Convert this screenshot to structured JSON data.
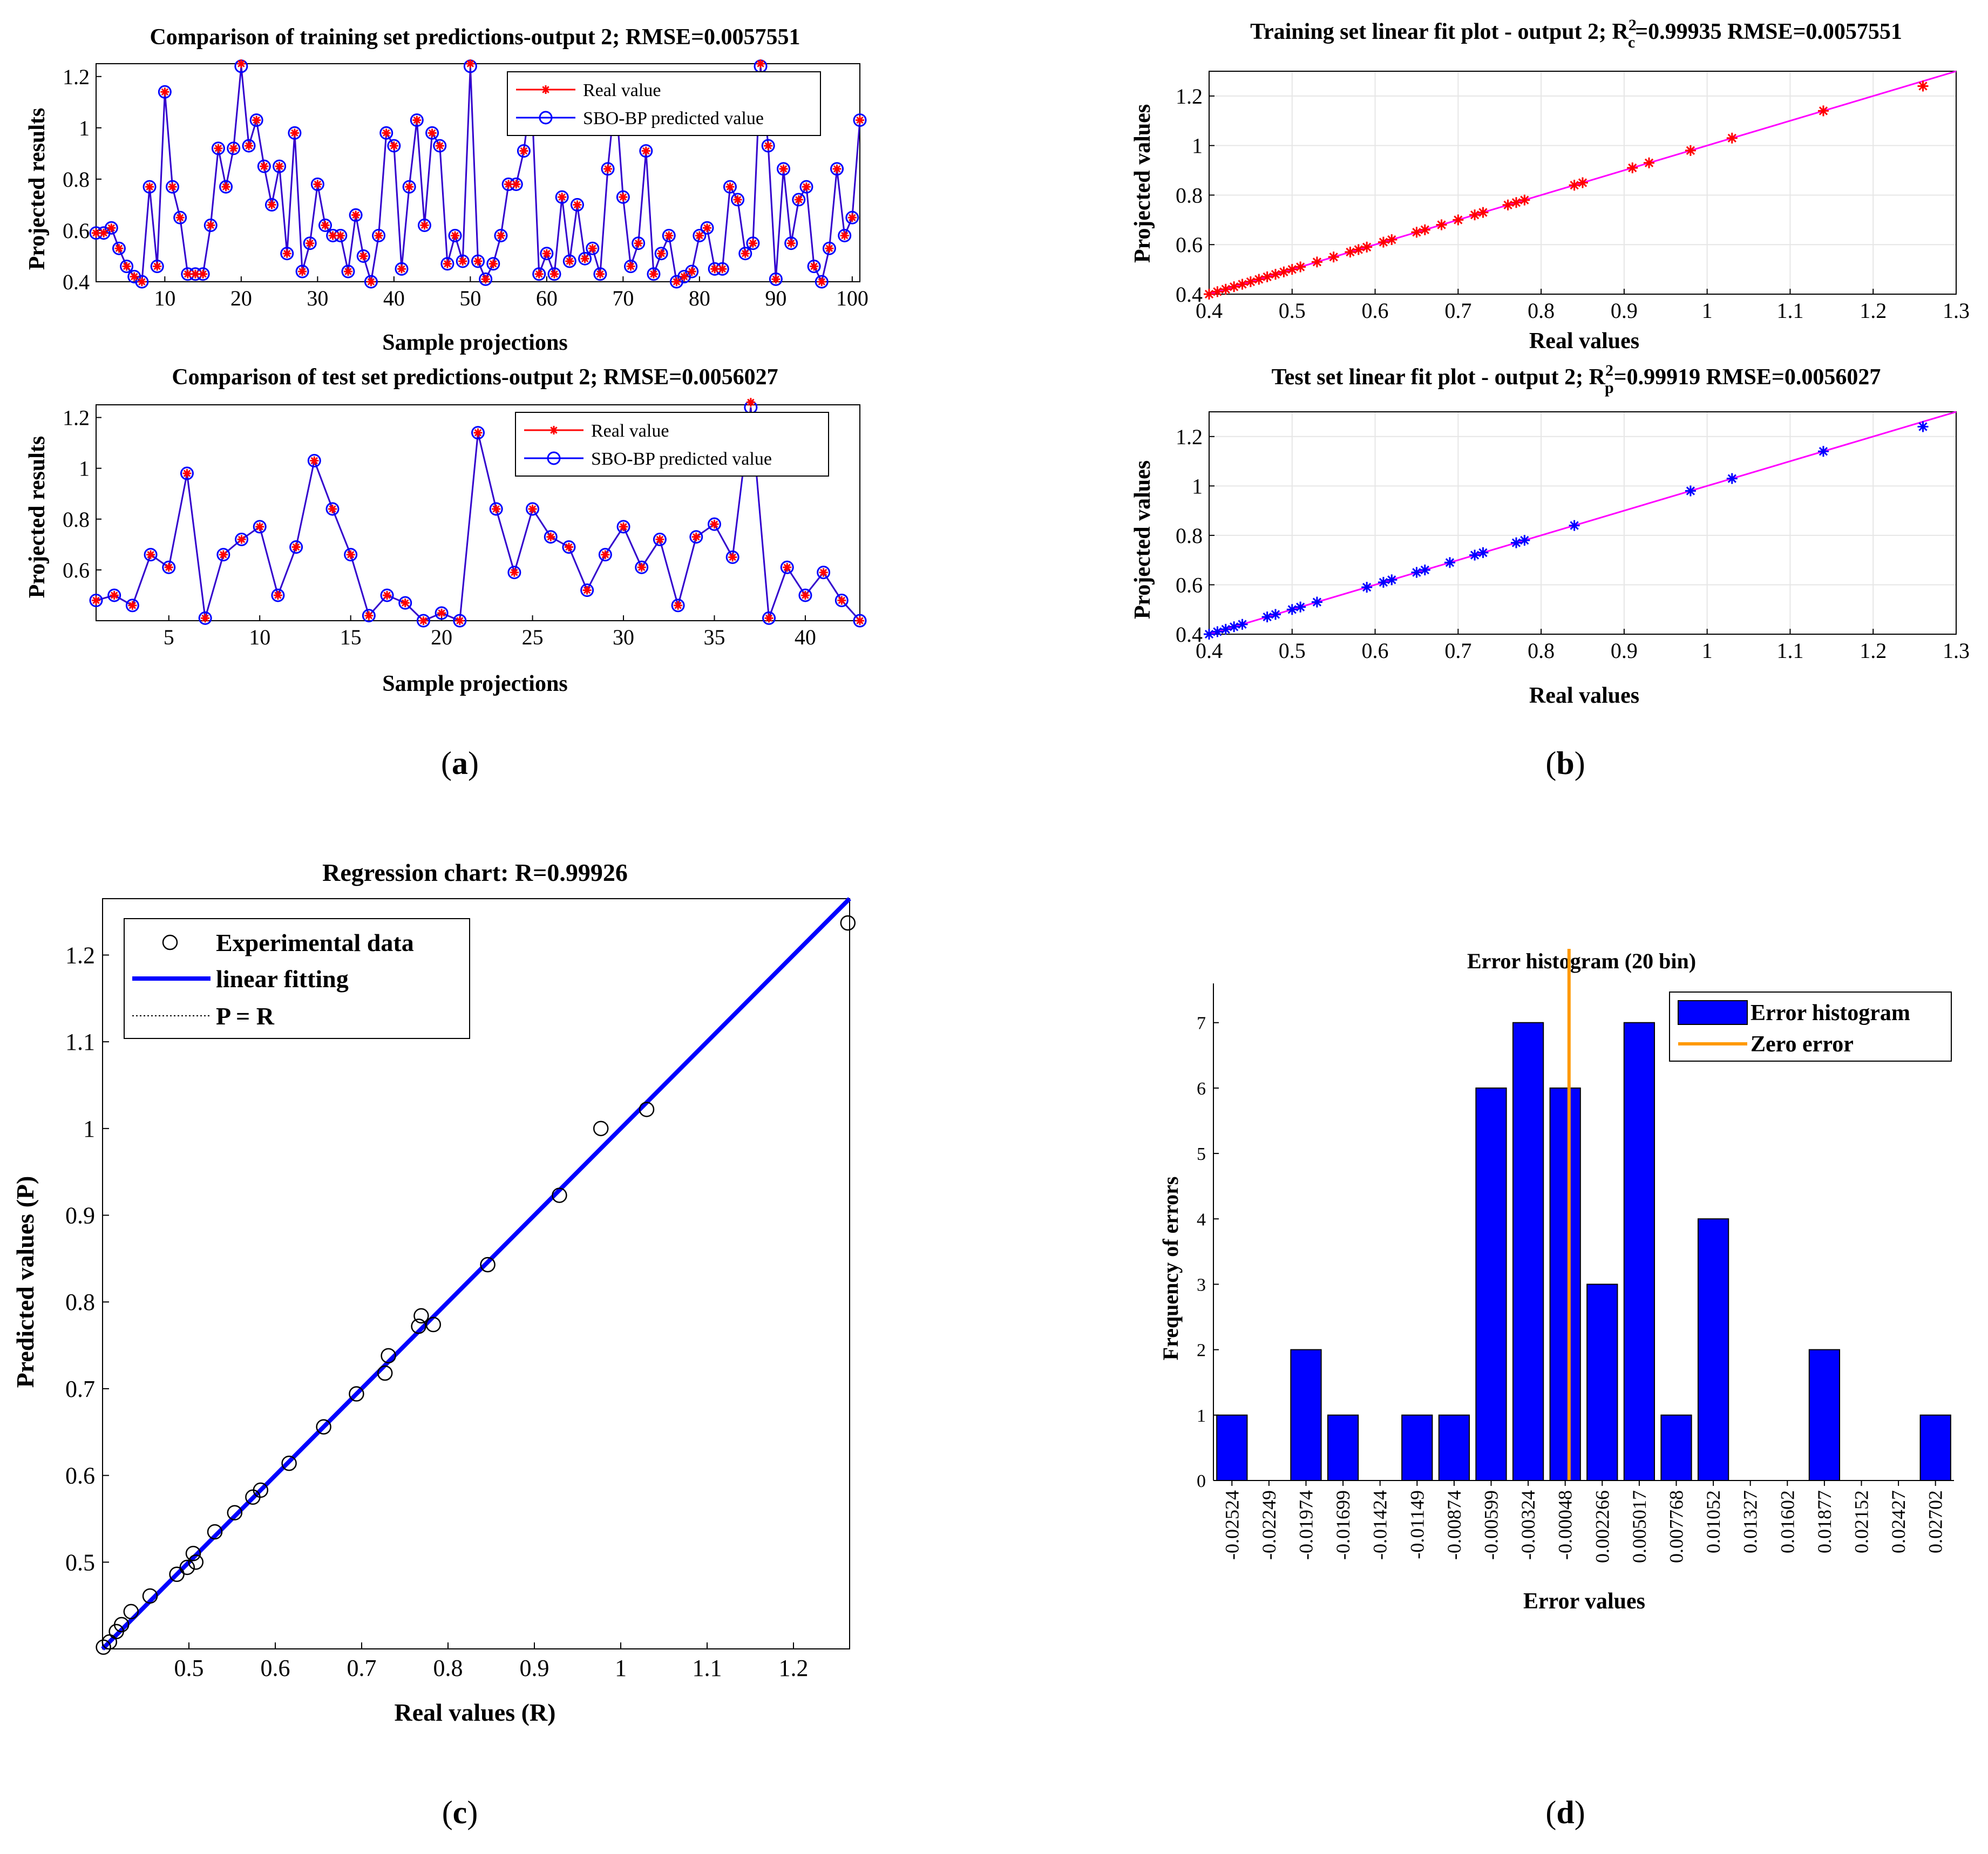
{
  "chart_data": [
    {
      "id": "a1",
      "type": "line",
      "title": "Comparison of training set predictions-output 2; RMSE=0.0057551",
      "xlabel": "Sample projections",
      "ylabel": "Projected results",
      "xlim": [
        1,
        101
      ],
      "ylim": [
        0.4,
        1.25
      ],
      "xticks": [
        10,
        20,
        30,
        40,
        50,
        60,
        70,
        80,
        90,
        100
      ],
      "yticks": [
        0.4,
        0.6,
        0.8,
        1,
        1.2
      ],
      "ytick_labels": [
        "0.4",
        "0.6",
        "0.8",
        "1",
        "1.2"
      ],
      "legend": [
        "Real value",
        "SBO-BP predicted value"
      ],
      "legend_position": "top-right",
      "series": [
        {
          "name": "Real value",
          "color": "#ff0000",
          "marker": "star",
          "values": [
            0.59,
            0.59,
            0.61,
            0.53,
            0.46,
            0.42,
            0.4,
            0.77,
            0.46,
            1.14,
            0.77,
            0.65,
            0.43,
            0.43,
            0.43,
            0.62,
            0.92,
            0.77,
            0.92,
            1.25,
            0.93,
            1.03,
            0.85,
            0.7,
            0.85,
            0.51,
            0.98,
            0.44,
            0.55,
            0.78,
            0.62,
            0.58,
            0.58,
            0.44,
            0.66,
            0.5,
            0.4,
            0.58,
            0.98,
            0.93,
            0.45,
            0.77,
            1.03,
            0.62,
            0.98,
            0.93,
            0.47,
            0.58,
            0.48,
            1.25,
            0.48,
            0.41,
            0.47,
            0.58,
            0.78,
            0.78,
            0.91,
            1.14,
            0.43,
            0.51,
            0.43,
            0.73,
            0.48,
            0.7,
            0.49,
            0.53,
            0.43,
            0.84,
            1.14,
            0.73,
            0.46,
            0.55,
            0.91,
            0.43,
            0.51,
            0.58,
            0.4,
            0.42,
            0.44,
            0.58,
            0.61,
            0.45,
            0.45,
            0.77,
            0.72,
            0.51,
            0.55,
            1.25,
            0.93,
            0.41,
            0.84,
            0.55,
            0.72,
            0.77,
            0.46,
            0.4,
            0.53,
            0.84,
            0.58,
            0.65,
            1.03
          ]
        },
        {
          "name": "SBO-BP predicted value",
          "color": "#0000ff",
          "marker": "circle",
          "values": [
            0.59,
            0.59,
            0.61,
            0.53,
            0.46,
            0.42,
            0.4,
            0.77,
            0.46,
            1.14,
            0.77,
            0.65,
            0.43,
            0.43,
            0.43,
            0.62,
            0.92,
            0.77,
            0.92,
            1.24,
            0.93,
            1.03,
            0.85,
            0.7,
            0.85,
            0.51,
            0.98,
            0.44,
            0.55,
            0.78,
            0.62,
            0.58,
            0.58,
            0.44,
            0.66,
            0.5,
            0.4,
            0.58,
            0.98,
            0.93,
            0.45,
            0.77,
            1.03,
            0.62,
            0.98,
            0.93,
            0.47,
            0.58,
            0.48,
            1.24,
            0.48,
            0.41,
            0.47,
            0.58,
            0.78,
            0.78,
            0.91,
            1.14,
            0.43,
            0.51,
            0.43,
            0.73,
            0.48,
            0.7,
            0.49,
            0.53,
            0.43,
            0.84,
            1.14,
            0.73,
            0.46,
            0.55,
            0.91,
            0.43,
            0.51,
            0.58,
            0.4,
            0.42,
            0.44,
            0.58,
            0.61,
            0.45,
            0.45,
            0.77,
            0.72,
            0.51,
            0.55,
            1.24,
            0.93,
            0.41,
            0.84,
            0.55,
            0.72,
            0.77,
            0.46,
            0.4,
            0.53,
            0.84,
            0.58,
            0.65,
            1.03
          ]
        }
      ]
    },
    {
      "id": "a2",
      "type": "line",
      "title": "Comparison of test set predictions-output 2; RMSE=0.0056027",
      "xlabel": "Sample projections",
      "ylabel": "Projected results",
      "xlim": [
        1,
        43
      ],
      "ylim": [
        0.4,
        1.25
      ],
      "xticks": [
        5,
        10,
        15,
        20,
        25,
        30,
        35,
        40
      ],
      "yticks": [
        0.6,
        0.8,
        1,
        1.2
      ],
      "ytick_labels": [
        "0.6",
        "0.8",
        "1",
        "1.2"
      ],
      "legend": [
        "Real value",
        "SBO-BP predicted value"
      ],
      "legend_position": "top-right",
      "series": [
        {
          "name": "Real value",
          "color": "#ff0000",
          "marker": "star",
          "values": [
            0.48,
            0.5,
            0.46,
            0.66,
            0.61,
            0.98,
            0.41,
            0.66,
            0.72,
            0.77,
            0.5,
            0.69,
            1.03,
            0.84,
            0.66,
            0.42,
            0.5,
            0.47,
            0.4,
            0.43,
            0.4,
            1.14,
            0.84,
            0.59,
            0.84,
            0.73,
            0.69,
            0.52,
            0.66,
            0.77,
            0.61,
            0.72,
            0.46,
            0.73,
            0.78,
            0.65,
            1.26,
            0.41,
            0.61,
            0.5,
            0.59,
            0.48,
            0.4
          ]
        },
        {
          "name": "SBO-BP predicted value",
          "color": "#0000ff",
          "marker": "circle",
          "values": [
            0.48,
            0.5,
            0.46,
            0.66,
            0.61,
            0.98,
            0.41,
            0.66,
            0.72,
            0.77,
            0.5,
            0.69,
            1.03,
            0.84,
            0.66,
            0.42,
            0.5,
            0.47,
            0.4,
            0.43,
            0.4,
            1.14,
            0.84,
            0.59,
            0.84,
            0.73,
            0.69,
            0.52,
            0.66,
            0.77,
            0.61,
            0.72,
            0.46,
            0.73,
            0.78,
            0.65,
            1.24,
            0.41,
            0.61,
            0.5,
            0.59,
            0.48,
            0.4
          ]
        }
      ]
    },
    {
      "id": "b1",
      "type": "scatter",
      "title_prefix": "Training set linear fit plot - output 2; R",
      "title_sup": "2",
      "title_sub": "c",
      "title_suffix": "=0.99935  RMSE=0.0057551",
      "xlabel": "Real values",
      "ylabel": "Projected values",
      "xlim": [
        0.4,
        1.3
      ],
      "ylim": [
        0.4,
        1.3
      ],
      "xticks": [
        0.4,
        0.5,
        0.6,
        0.7,
        0.8,
        0.9,
        1,
        1.1,
        1.2,
        1.3
      ],
      "yticks": [
        0.4,
        0.6,
        0.8,
        1,
        1.2
      ],
      "xtick_labels": [
        "0.4",
        "0.5",
        "0.6",
        "0.7",
        "0.8",
        "0.9",
        "1",
        "1.1",
        "1.2",
        "1.3"
      ],
      "ytick_labels": [
        "0.4",
        "0.6",
        "0.8",
        "1",
        "1.2"
      ],
      "point_color": "#ff0000",
      "line_color": "#ff00ff",
      "x": [
        0.4,
        0.41,
        0.42,
        0.43,
        0.44,
        0.45,
        0.46,
        0.47,
        0.48,
        0.49,
        0.5,
        0.51,
        0.53,
        0.55,
        0.57,
        0.58,
        0.59,
        0.61,
        0.62,
        0.65,
        0.66,
        0.68,
        0.7,
        0.72,
        0.73,
        0.76,
        0.77,
        0.78,
        0.84,
        0.85,
        0.91,
        0.93,
        0.98,
        1.03,
        1.14,
        1.26
      ],
      "y": [
        0.4,
        0.41,
        0.42,
        0.43,
        0.44,
        0.45,
        0.46,
        0.47,
        0.48,
        0.49,
        0.5,
        0.51,
        0.53,
        0.55,
        0.57,
        0.58,
        0.59,
        0.61,
        0.62,
        0.65,
        0.66,
        0.68,
        0.7,
        0.72,
        0.73,
        0.76,
        0.77,
        0.78,
        0.84,
        0.85,
        0.91,
        0.93,
        0.98,
        1.03,
        1.14,
        1.24
      ]
    },
    {
      "id": "b2",
      "type": "scatter",
      "title_prefix": "Test set linear fit plot - output 2; R",
      "title_sup": "2",
      "title_sub": "p",
      "title_suffix": "=0.99919  RMSE=0.0056027",
      "xlabel": "Real values",
      "ylabel": "Projected values",
      "xlim": [
        0.4,
        1.3
      ],
      "ylim": [
        0.4,
        1.3
      ],
      "xticks": [
        0.4,
        0.5,
        0.6,
        0.7,
        0.8,
        0.9,
        1,
        1.1,
        1.2,
        1.3
      ],
      "yticks": [
        0.4,
        0.6,
        0.8,
        1,
        1.2
      ],
      "xtick_labels": [
        "0.4",
        "0.5",
        "0.6",
        "0.7",
        "0.8",
        "0.9",
        "1",
        "1.1",
        "1.2",
        "1.3"
      ],
      "ytick_labels": [
        "0.4",
        "0.6",
        "0.8",
        "1",
        "1.2"
      ],
      "point_color": "#0000ff",
      "line_color": "#ff00ff",
      "x": [
        0.4,
        0.41,
        0.42,
        0.43,
        0.44,
        0.47,
        0.48,
        0.5,
        0.51,
        0.53,
        0.59,
        0.61,
        0.62,
        0.65,
        0.66,
        0.69,
        0.72,
        0.73,
        0.77,
        0.78,
        0.84,
        0.98,
        1.03,
        1.14,
        1.26
      ],
      "y": [
        0.4,
        0.41,
        0.42,
        0.43,
        0.44,
        0.47,
        0.48,
        0.5,
        0.51,
        0.53,
        0.59,
        0.61,
        0.62,
        0.65,
        0.66,
        0.69,
        0.72,
        0.73,
        0.77,
        0.78,
        0.84,
        0.98,
        1.03,
        1.14,
        1.24
      ]
    },
    {
      "id": "c",
      "type": "scatter",
      "title": "Regression chart: R=0.99926",
      "xlabel": "Real values (R)",
      "ylabel": "Predicted values (P)",
      "xlim": [
        0.4,
        1.265
      ],
      "ylim": [
        0.4,
        1.265
      ],
      "xticks": [
        0.5,
        0.6,
        0.7,
        0.8,
        0.9,
        1,
        1.1,
        1.2
      ],
      "yticks": [
        0.5,
        0.6,
        0.7,
        0.8,
        0.9,
        1,
        1.1,
        1.2
      ],
      "xtick_labels": [
        "0.5",
        "0.6",
        "0.7",
        "0.8",
        "0.9",
        "1",
        "1.1",
        "1.2"
      ],
      "ytick_labels": [
        "0.5",
        "0.6",
        "0.7",
        "0.8",
        "0.9",
        "1",
        "1.1",
        "1.2"
      ],
      "legend": [
        "Experimental data",
        "linear fitting",
        "P = R"
      ],
      "legend_position": "top-left",
      "fit_color": "#0000ff",
      "x": [
        0.401,
        0.408,
        0.416,
        0.422,
        0.433,
        0.455,
        0.486,
        0.498,
        0.505,
        0.508,
        0.53,
        0.553,
        0.574,
        0.583,
        0.616,
        0.656,
        0.694,
        0.727,
        0.731,
        0.766,
        0.769,
        0.783,
        0.846,
        0.929,
        0.977,
        1.03,
        1.263
      ],
      "y": [
        0.402,
        0.408,
        0.42,
        0.428,
        0.443,
        0.461,
        0.486,
        0.494,
        0.51,
        0.5,
        0.535,
        0.557,
        0.575,
        0.583,
        0.614,
        0.656,
        0.694,
        0.718,
        0.738,
        0.772,
        0.784,
        0.774,
        0.843,
        0.923,
        1.0,
        1.022,
        1.237
      ]
    },
    {
      "id": "d",
      "type": "bar",
      "title": "Error histogram (20 bin)",
      "xlabel": "Error values",
      "ylabel": "Frequency of errors",
      "categories": [
        "-0.02524",
        "-0.02249",
        "-0.01974",
        "-0.01699",
        "-0.01424",
        "-0.01149",
        "-0.00874",
        "-0.00599",
        "-0.00324",
        "-0.00048",
        "0.002266",
        "0.005017",
        "0.007768",
        "0.01052",
        "0.01327",
        "0.01602",
        "0.01877",
        "0.02152",
        "0.02427",
        "0.02702"
      ],
      "values": [
        1,
        0,
        2,
        1,
        0,
        1,
        1,
        6,
        7,
        6,
        3,
        7,
        1,
        4,
        0,
        0,
        2,
        0,
        0,
        1
      ],
      "ylim": [
        0,
        7.6
      ],
      "yticks": [
        0,
        1,
        2,
        3,
        4,
        5,
        6,
        7
      ],
      "ytick_labels": [
        "0",
        "1",
        "2",
        "3",
        "4",
        "5",
        "6",
        "7"
      ],
      "zero_error_x": -0.0002,
      "legend": [
        "Error histogram",
        "Zero error"
      ],
      "legend_position": "top-right",
      "bar_color": "#0000ff",
      "zero_color": "#ff9900"
    }
  ],
  "captions": {
    "a": {
      "open": "(",
      "letter": "a",
      "close": ")"
    },
    "b": {
      "open": "(",
      "letter": "b",
      "close": ")"
    },
    "c": {
      "open": "(",
      "letter": "c",
      "close": ")"
    },
    "d": {
      "open": "(",
      "letter": "d",
      "close": ")"
    }
  }
}
